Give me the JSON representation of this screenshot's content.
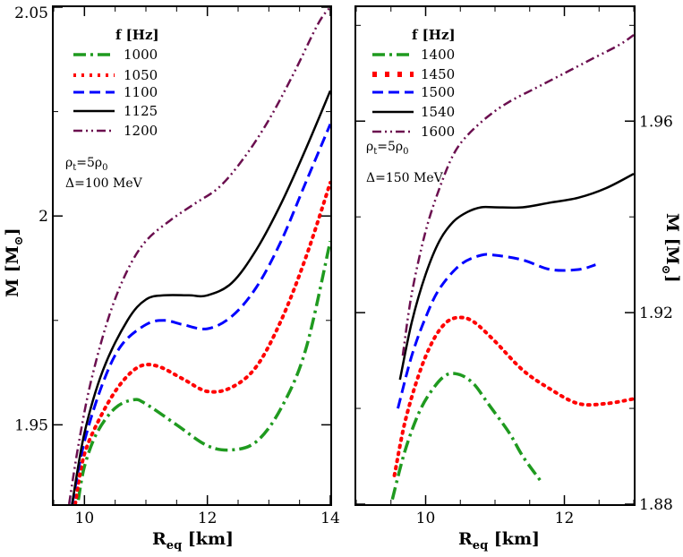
{
  "chart_data": [
    {
      "type": "line",
      "panel": "left",
      "xlabel_main": "R",
      "xlabel_sub": "eq",
      "xlabel_unit": " [km]",
      "ylabel_main": "M [M",
      "ylabel_sub": "⊙",
      "ylabel_close": "]",
      "xlim": [
        9.5,
        14
      ],
      "ylim": [
        1.931,
        2.05
      ],
      "xticks": [
        10,
        12,
        14
      ],
      "xtick_labels": [
        "10",
        "12",
        "14"
      ],
      "yticks": [
        1.95,
        2.0,
        2.05
      ],
      "ytick_labels": [
        "1.95",
        "2",
        "2.05"
      ],
      "legend_title": "f  [Hz]",
      "annotation_rho": "ρ",
      "annotation_rho_sub": "t",
      "annotation_rho_eq": "=5ρ",
      "annotation_rho_sub2": "0",
      "annotation_delta": "Δ=100 MeV",
      "series": [
        {
          "name": "1000",
          "color": "#1f9a1f",
          "dash": "dashdot",
          "x": [
            9.9,
            10.0,
            10.2,
            10.5,
            10.8,
            11.0,
            11.5,
            12.0,
            12.4,
            12.8,
            13.2,
            13.6,
            14.0
          ],
          "y": [
            1.932,
            1.94,
            1.948,
            1.954,
            1.956,
            1.955,
            1.95,
            1.945,
            1.944,
            1.946,
            1.954,
            1.968,
            1.994
          ]
        },
        {
          "name": "1050",
          "color": "#ff0000",
          "dash": "dot",
          "x": [
            9.85,
            10.0,
            10.3,
            10.6,
            10.9,
            11.2,
            11.6,
            12.0,
            12.4,
            12.8,
            13.2,
            13.6,
            14.0
          ],
          "y": [
            1.931,
            1.943,
            1.953,
            1.96,
            1.964,
            1.964,
            1.961,
            1.958,
            1.959,
            1.964,
            1.975,
            1.99,
            2.008
          ]
        },
        {
          "name": "1100",
          "color": "#0000ff",
          "dash": "dash",
          "x": [
            9.8,
            10.0,
            10.3,
            10.6,
            11.0,
            11.3,
            11.6,
            12.0,
            12.4,
            12.8,
            13.2,
            13.6,
            14.0
          ],
          "y": [
            1.931,
            1.946,
            1.96,
            1.969,
            1.974,
            1.975,
            1.974,
            1.973,
            1.976,
            1.983,
            1.994,
            2.008,
            2.022
          ]
        },
        {
          "name": "1125",
          "color": "#000000",
          "dash": "solid",
          "x": [
            9.8,
            10.0,
            10.3,
            10.7,
            11.0,
            11.3,
            11.7,
            12.0,
            12.4,
            12.8,
            13.2,
            13.6,
            14.0
          ],
          "y": [
            1.931,
            1.948,
            1.963,
            1.975,
            1.98,
            1.981,
            1.981,
            1.981,
            1.984,
            1.992,
            2.003,
            2.016,
            2.03
          ]
        },
        {
          "name": "1200",
          "color": "#6b0f4f",
          "dash": "dashdotdot",
          "x": [
            9.75,
            9.9,
            10.1,
            10.4,
            10.7,
            11.0,
            11.4,
            11.8,
            12.2,
            12.6,
            13.0,
            13.4,
            13.8,
            14.0
          ],
          "y": [
            1.931,
            1.945,
            1.96,
            1.976,
            1.987,
            1.994,
            1.999,
            2.003,
            2.007,
            2.014,
            2.023,
            2.034,
            2.046,
            2.05
          ]
        }
      ]
    },
    {
      "type": "line",
      "panel": "right",
      "xlabel_main": "R",
      "xlabel_sub": "eq",
      "xlabel_unit": " [km]",
      "ylabel_main": "M [M",
      "ylabel_sub": "⊙",
      "ylabel_close": "]",
      "xlim": [
        9.0,
        13.0
      ],
      "ylim": [
        1.88,
        1.9838
      ],
      "xticks": [
        10,
        12
      ],
      "xtick_labels": [
        "10",
        "12"
      ],
      "yticks": [
        1.88,
        1.92,
        1.96
      ],
      "ytick_labels": [
        "1.88",
        "1.92",
        "1.96"
      ],
      "legend_title": "f  [Hz]",
      "annotation_rho": "ρ",
      "annotation_rho_sub": "t",
      "annotation_rho_eq": "=5ρ",
      "annotation_rho_sub2": "0",
      "annotation_delta": "Δ=150 MeV",
      "series": [
        {
          "name": "1400",
          "color": "#1f9a1f",
          "dash": "dashdot",
          "x": [
            9.52,
            9.7,
            9.9,
            10.1,
            10.3,
            10.5,
            10.7,
            10.9,
            11.2,
            11.4,
            11.65
          ],
          "y": [
            1.881,
            1.891,
            1.899,
            1.904,
            1.907,
            1.907,
            1.905,
            1.901,
            1.895,
            1.89,
            1.885
          ]
        },
        {
          "name": "1450",
          "color": "#ff0000",
          "dash": "dot",
          "x": [
            9.55,
            9.7,
            9.9,
            10.1,
            10.3,
            10.5,
            10.7,
            11.0,
            11.4,
            11.8,
            12.2,
            12.6,
            13.0
          ],
          "y": [
            1.886,
            1.897,
            1.907,
            1.914,
            1.918,
            1.919,
            1.918,
            1.914,
            1.908,
            1.904,
            1.901,
            1.901,
            1.902
          ]
        },
        {
          "name": "1500",
          "color": "#0000ff",
          "dash": "dash",
          "x": [
            9.6,
            9.8,
            10.0,
            10.2,
            10.5,
            10.8,
            11.0,
            11.4,
            11.8,
            12.2,
            12.45
          ],
          "y": [
            1.9,
            1.911,
            1.919,
            1.925,
            1.93,
            1.932,
            1.932,
            1.931,
            1.929,
            1.929,
            1.93
          ]
        },
        {
          "name": "1540",
          "color": "#000000",
          "dash": "solid",
          "x": [
            9.63,
            9.8,
            10.0,
            10.2,
            10.4,
            10.6,
            10.8,
            11.0,
            11.4,
            11.8,
            12.2,
            12.6,
            13.0
          ],
          "y": [
            1.906,
            1.918,
            1.928,
            1.935,
            1.939,
            1.941,
            1.942,
            1.942,
            1.942,
            1.943,
            1.944,
            1.946,
            1.949
          ]
        },
        {
          "name": "1600",
          "color": "#6b0f4f",
          "dash": "dashdotdot",
          "x": [
            9.67,
            9.8,
            10.0,
            10.2,
            10.4,
            10.6,
            10.9,
            11.2,
            11.6,
            12.0,
            12.4,
            12.8,
            13.0
          ],
          "y": [
            1.911,
            1.924,
            1.937,
            1.946,
            1.953,
            1.957,
            1.961,
            1.964,
            1.967,
            1.97,
            1.973,
            1.976,
            1.978
          ]
        }
      ]
    }
  ]
}
